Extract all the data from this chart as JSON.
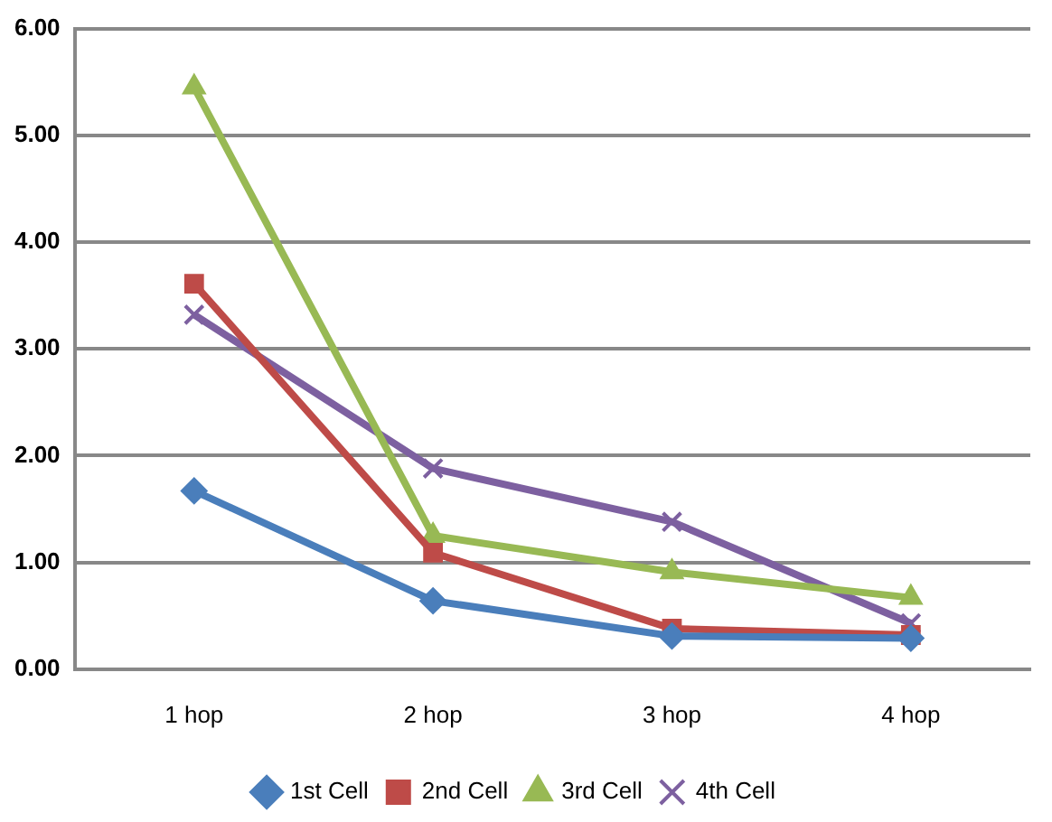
{
  "chart_data": {
    "type": "line",
    "categories": [
      "1 hop",
      "2 hop",
      "3 hop",
      "4 hop"
    ],
    "series": [
      {
        "name": "1st Cell",
        "color": "#4a7ebb",
        "marker": "diamond",
        "values": [
          1.67,
          0.64,
          0.31,
          0.29
        ]
      },
      {
        "name": "2nd Cell",
        "color": "#be4b48",
        "marker": "square",
        "values": [
          3.61,
          1.09,
          0.38,
          0.32
        ]
      },
      {
        "name": "3rd Cell",
        "color": "#98b954",
        "marker": "triangle",
        "values": [
          5.45,
          1.25,
          0.91,
          0.67
        ]
      },
      {
        "name": "4th Cell",
        "color": "#7d60a0",
        "marker": "cross",
        "values": [
          3.32,
          1.88,
          1.38,
          0.43
        ]
      }
    ],
    "ylim": [
      0,
      6
    ],
    "yticks": [
      {
        "value": 0,
        "label": "0.00"
      },
      {
        "value": 1,
        "label": "1.00"
      },
      {
        "value": 2,
        "label": "2.00"
      },
      {
        "value": 3,
        "label": "3.00"
      },
      {
        "value": 4,
        "label": "4.00"
      },
      {
        "value": 5,
        "label": "5.00"
      },
      {
        "value": 6,
        "label": "6.00"
      }
    ],
    "grid": "y",
    "legend": "bottom",
    "line_style": "solid"
  }
}
